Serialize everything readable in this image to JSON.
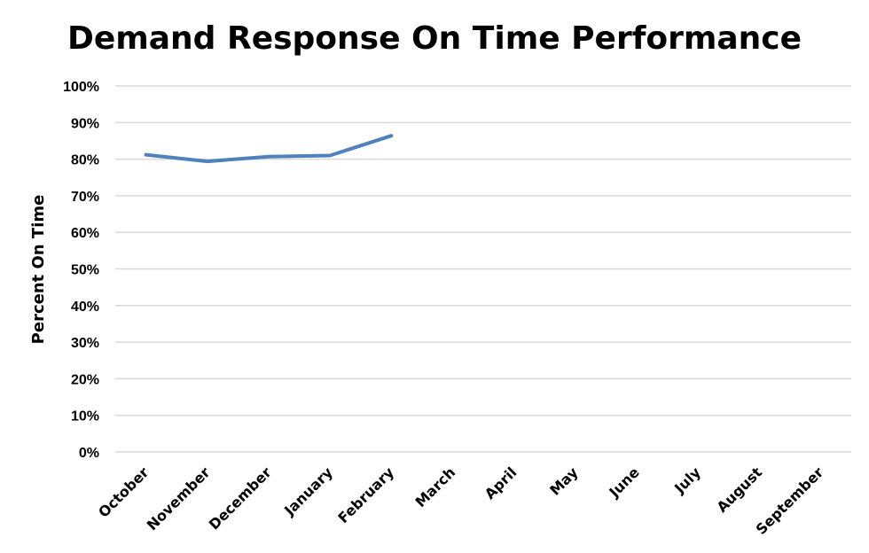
{
  "chart_data": {
    "type": "line",
    "title": "Demand Response On Time Performance",
    "xlabel": "",
    "ylabel": "Percent On Time",
    "categories": [
      "October",
      "November",
      "December",
      "January",
      "February",
      "March",
      "April",
      "May",
      "June",
      "July",
      "August",
      "September"
    ],
    "series": [
      {
        "values": [
          81.2,
          79.4,
          80.7,
          81.0,
          86.4,
          null,
          null,
          null,
          null,
          null,
          null,
          null
        ]
      }
    ],
    "ylim": [
      0,
      100
    ],
    "yticks": [
      0,
      10,
      20,
      30,
      40,
      50,
      60,
      70,
      80,
      90,
      100
    ],
    "ytick_format": "%",
    "grid": true,
    "legend": "none",
    "colors": {
      "series": "#4f81bd",
      "grid": "#d9d9d9"
    }
  }
}
